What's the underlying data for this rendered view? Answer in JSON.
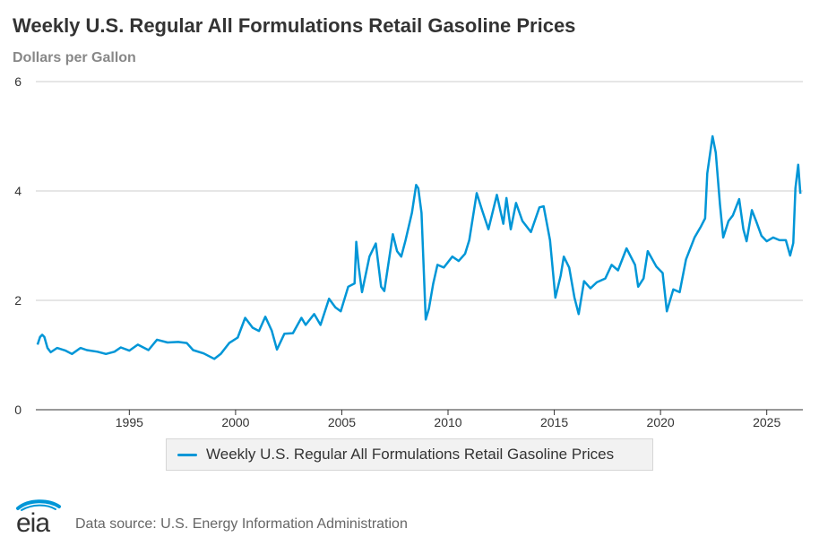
{
  "title": "Weekly U.S. Regular All Formulations Retail Gasoline Prices",
  "subtitle": "Dollars per Gallon",
  "source": "Data source: U.S. Energy Information Administration",
  "logo_text": "eia",
  "colors": {
    "series": "#0096d7",
    "grid": "#cccccc",
    "axis": "#333333"
  },
  "chart_data": {
    "type": "line",
    "title": "Weekly U.S. Regular All Formulations Retail Gasoline Prices",
    "ylabel": "Dollars per Gallon",
    "xlabel": "",
    "ylim": [
      0,
      6
    ],
    "xlim": [
      1990.6,
      2026.7
    ],
    "yticks": [
      0,
      2,
      4,
      6
    ],
    "xticks": [
      1995,
      2000,
      2005,
      2010,
      2015,
      2020,
      2025
    ],
    "grid": true,
    "legend_position": "bottom",
    "series": [
      {
        "name": "Weekly U.S. Regular All Formulations Retail Gasoline Prices",
        "points": [
          [
            1990.68,
            1.19
          ],
          [
            1990.8,
            1.33
          ],
          [
            1990.9,
            1.37
          ],
          [
            1991.0,
            1.33
          ],
          [
            1991.15,
            1.13
          ],
          [
            1991.3,
            1.05
          ],
          [
            1991.6,
            1.13
          ],
          [
            1992.0,
            1.08
          ],
          [
            1992.3,
            1.02
          ],
          [
            1992.7,
            1.13
          ],
          [
            1993.0,
            1.09
          ],
          [
            1993.5,
            1.06
          ],
          [
            1993.9,
            1.02
          ],
          [
            1994.3,
            1.06
          ],
          [
            1994.6,
            1.14
          ],
          [
            1995.0,
            1.08
          ],
          [
            1995.4,
            1.19
          ],
          [
            1995.9,
            1.09
          ],
          [
            1996.3,
            1.28
          ],
          [
            1996.8,
            1.23
          ],
          [
            1997.3,
            1.24
          ],
          [
            1997.7,
            1.22
          ],
          [
            1998.0,
            1.09
          ],
          [
            1998.5,
            1.03
          ],
          [
            1999.0,
            0.93
          ],
          [
            1999.3,
            1.02
          ],
          [
            1999.7,
            1.22
          ],
          [
            2000.1,
            1.32
          ],
          [
            2000.45,
            1.68
          ],
          [
            2000.8,
            1.5
          ],
          [
            2001.1,
            1.44
          ],
          [
            2001.4,
            1.7
          ],
          [
            2001.7,
            1.45
          ],
          [
            2001.95,
            1.1
          ],
          [
            2002.3,
            1.39
          ],
          [
            2002.7,
            1.4
          ],
          [
            2003.1,
            1.68
          ],
          [
            2003.3,
            1.55
          ],
          [
            2003.7,
            1.75
          ],
          [
            2004.0,
            1.55
          ],
          [
            2004.4,
            2.03
          ],
          [
            2004.7,
            1.87
          ],
          [
            2004.95,
            1.8
          ],
          [
            2005.3,
            2.25
          ],
          [
            2005.6,
            2.31
          ],
          [
            2005.68,
            3.07
          ],
          [
            2005.8,
            2.6
          ],
          [
            2005.95,
            2.15
          ],
          [
            2006.3,
            2.8
          ],
          [
            2006.6,
            3.04
          ],
          [
            2006.85,
            2.25
          ],
          [
            2007.0,
            2.17
          ],
          [
            2007.4,
            3.21
          ],
          [
            2007.6,
            2.9
          ],
          [
            2007.8,
            2.8
          ],
          [
            2008.0,
            3.1
          ],
          [
            2008.3,
            3.6
          ],
          [
            2008.5,
            4.11
          ],
          [
            2008.6,
            4.05
          ],
          [
            2008.75,
            3.6
          ],
          [
            2008.95,
            1.65
          ],
          [
            2009.1,
            1.85
          ],
          [
            2009.3,
            2.3
          ],
          [
            2009.5,
            2.65
          ],
          [
            2009.8,
            2.6
          ],
          [
            2010.2,
            2.8
          ],
          [
            2010.5,
            2.72
          ],
          [
            2010.8,
            2.85
          ],
          [
            2011.0,
            3.1
          ],
          [
            2011.35,
            3.96
          ],
          [
            2011.6,
            3.65
          ],
          [
            2011.9,
            3.3
          ],
          [
            2012.3,
            3.93
          ],
          [
            2012.6,
            3.4
          ],
          [
            2012.75,
            3.87
          ],
          [
            2012.95,
            3.3
          ],
          [
            2013.2,
            3.78
          ],
          [
            2013.5,
            3.45
          ],
          [
            2013.9,
            3.25
          ],
          [
            2014.3,
            3.7
          ],
          [
            2014.5,
            3.72
          ],
          [
            2014.8,
            3.1
          ],
          [
            2015.05,
            2.05
          ],
          [
            2015.3,
            2.45
          ],
          [
            2015.45,
            2.8
          ],
          [
            2015.7,
            2.6
          ],
          [
            2015.95,
            2.05
          ],
          [
            2016.15,
            1.75
          ],
          [
            2016.4,
            2.35
          ],
          [
            2016.7,
            2.22
          ],
          [
            2017.0,
            2.33
          ],
          [
            2017.4,
            2.4
          ],
          [
            2017.7,
            2.65
          ],
          [
            2018.0,
            2.55
          ],
          [
            2018.4,
            2.95
          ],
          [
            2018.8,
            2.65
          ],
          [
            2018.95,
            2.25
          ],
          [
            2019.2,
            2.4
          ],
          [
            2019.4,
            2.9
          ],
          [
            2019.8,
            2.62
          ],
          [
            2020.1,
            2.5
          ],
          [
            2020.3,
            1.8
          ],
          [
            2020.6,
            2.2
          ],
          [
            2020.9,
            2.15
          ],
          [
            2021.2,
            2.75
          ],
          [
            2021.6,
            3.15
          ],
          [
            2021.9,
            3.35
          ],
          [
            2022.1,
            3.5
          ],
          [
            2022.2,
            4.32
          ],
          [
            2022.45,
            5.0
          ],
          [
            2022.6,
            4.7
          ],
          [
            2022.8,
            3.75
          ],
          [
            2022.95,
            3.15
          ],
          [
            2023.2,
            3.45
          ],
          [
            2023.4,
            3.55
          ],
          [
            2023.7,
            3.85
          ],
          [
            2023.9,
            3.3
          ],
          [
            2024.05,
            3.08
          ],
          [
            2024.3,
            3.65
          ],
          [
            2024.5,
            3.45
          ],
          [
            2024.75,
            3.18
          ],
          [
            2025.0,
            3.08
          ],
          [
            2025.3,
            3.15
          ],
          [
            2025.6,
            3.1
          ],
          [
            2025.9,
            3.1
          ],
          [
            2026.1,
            2.82
          ],
          [
            2026.25,
            3.05
          ],
          [
            2026.35,
            4.05
          ],
          [
            2026.48,
            4.48
          ],
          [
            2026.58,
            3.95
          ]
        ]
      }
    ]
  }
}
